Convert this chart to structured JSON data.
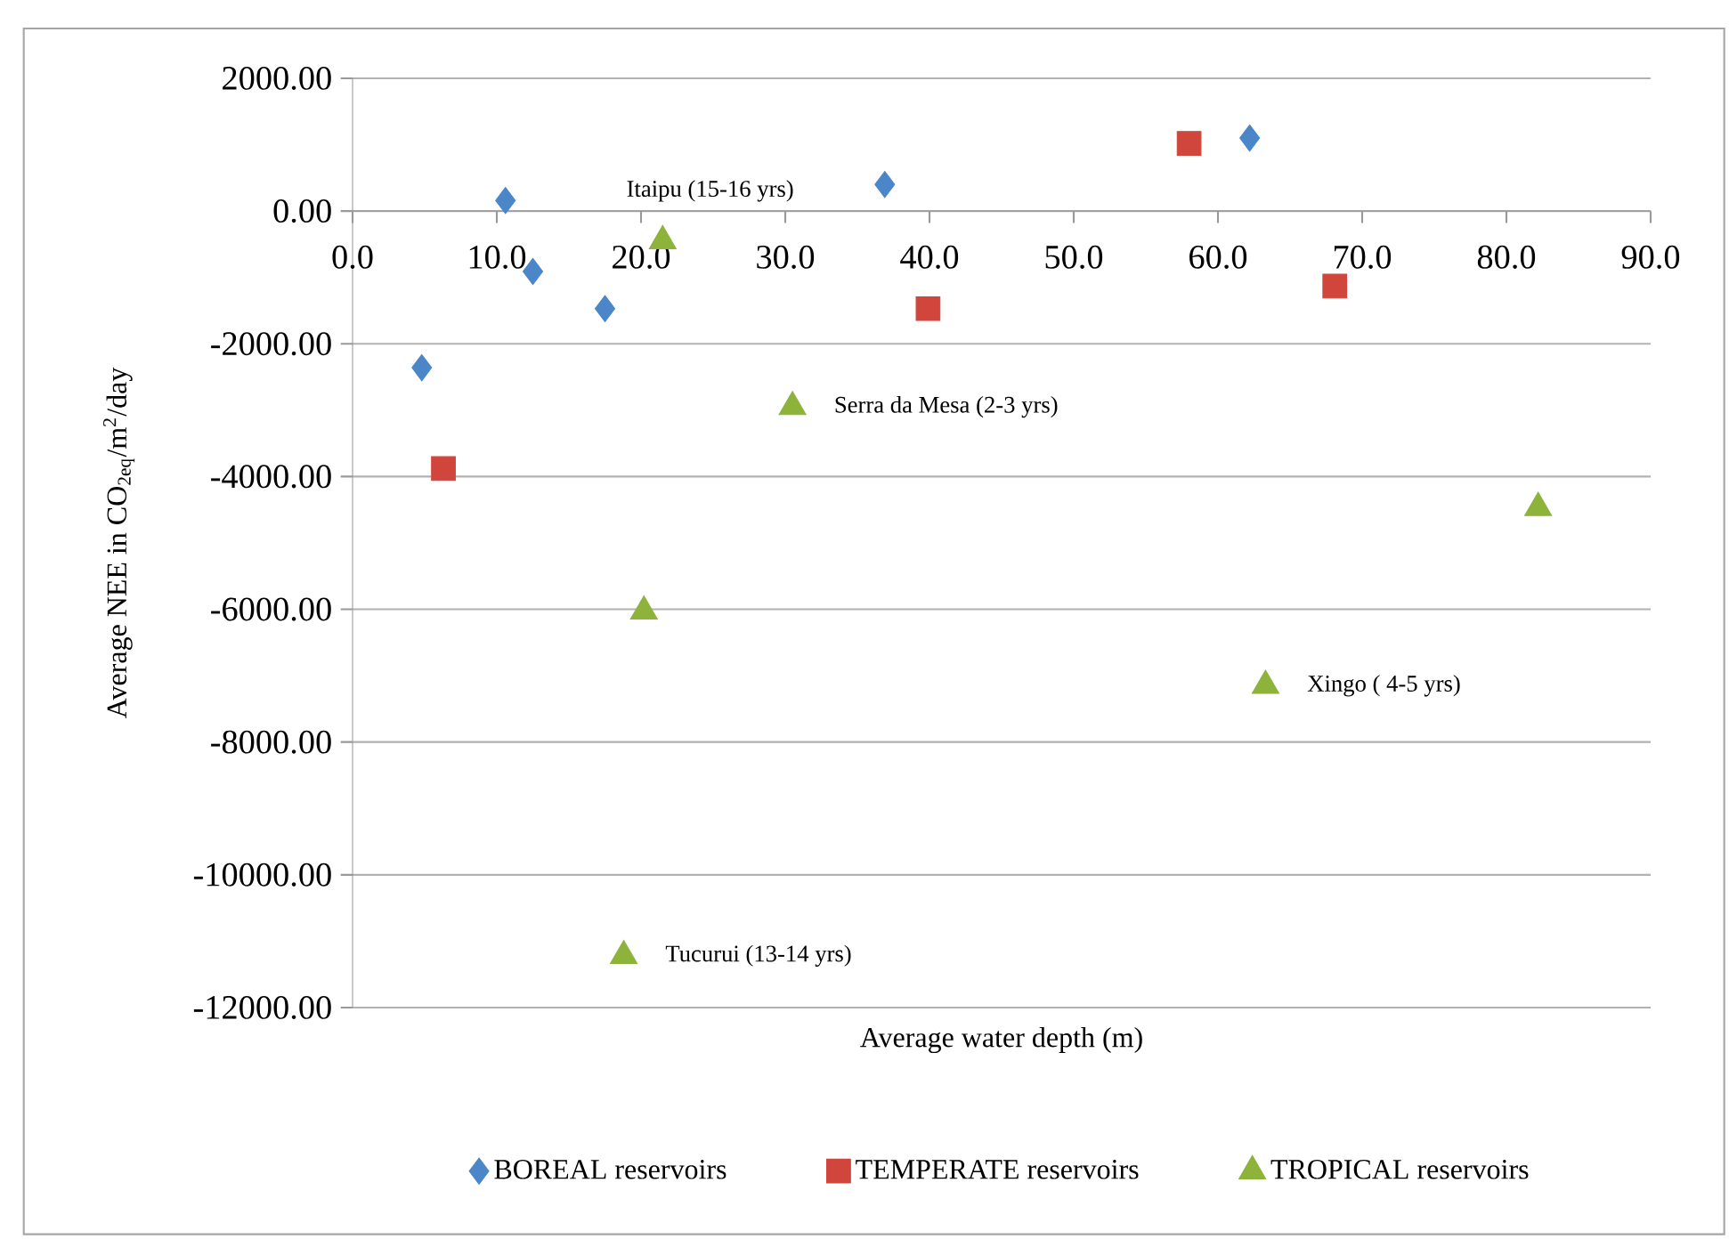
{
  "chart_data": {
    "type": "scatter",
    "xlabel": "Average water depth (m)",
    "ylabel": "Average NEE in CO$_{2eq}$/m$^{2}$/day",
    "series": [
      {
        "name": "BOREAL reservoirs",
        "color": "#4a86c8",
        "marker": "diamond",
        "x": [
          4.8,
          10.6,
          12.5,
          17.5,
          36.9,
          62.2
        ],
        "values": [
          -2360,
          160,
          -910,
          -1470,
          400,
          1100
        ]
      },
      {
        "name": "TEMPERATE reservoirs",
        "color": "#d0463c",
        "marker": "square",
        "x": [
          6.3,
          39.9,
          58.0,
          68.1
        ],
        "values": [
          -3880,
          -1470,
          1020,
          -1130
        ]
      },
      {
        "name": "TROPICAL reservoirs",
        "color": "#8db33a",
        "marker": "triangle",
        "x": [
          21.5,
          30.5,
          82.2,
          63.3,
          20.2,
          18.8
        ],
        "values": [
          -450,
          -2950,
          -4470,
          -7150,
          -6030,
          -11220
        ]
      }
    ],
    "annotations": [
      {
        "text": "Itaipu (15-16 yrs)",
        "x": 21.5,
        "y": -450
      },
      {
        "text": "Serra da Mesa (2-3 yrs)",
        "x": 30.5,
        "y": -2950
      },
      {
        "text": "Xingo ( 4-5 yrs)",
        "x": 63.3,
        "y": -7150
      },
      {
        "text": "Tucurui (13-14 yrs)",
        "x": 18.8,
        "y": -11220
      }
    ],
    "xlim": [
      0,
      90
    ],
    "xticks": [
      {
        "value": 0,
        "label": "0.0"
      },
      {
        "value": 10,
        "label": "10.0"
      },
      {
        "value": 20,
        "label": "20.0"
      },
      {
        "value": 30,
        "label": "30.0"
      },
      {
        "value": 40,
        "label": "40.0"
      },
      {
        "value": 50,
        "label": "50.0"
      },
      {
        "value": 60,
        "label": "60.0"
      },
      {
        "value": 70,
        "label": "70.0"
      },
      {
        "value": 80,
        "label": "80.0"
      },
      {
        "value": 90,
        "label": "90.0"
      }
    ],
    "ylim": [
      -12000,
      2000
    ],
    "yticks": [
      {
        "value": 2000,
        "label": "2000.00"
      },
      {
        "value": 0,
        "label": "0.00"
      },
      {
        "value": -2000,
        "label": "-2000.00"
      },
      {
        "value": -4000,
        "label": "-4000.00"
      },
      {
        "value": -6000,
        "label": "-6000.00"
      },
      {
        "value": -8000,
        "label": "-8000.00"
      },
      {
        "value": -10000,
        "label": "-10000.00"
      },
      {
        "value": -12000,
        "label": "-12000.00"
      }
    ],
    "grid": "y",
    "legend": "bottom"
  }
}
